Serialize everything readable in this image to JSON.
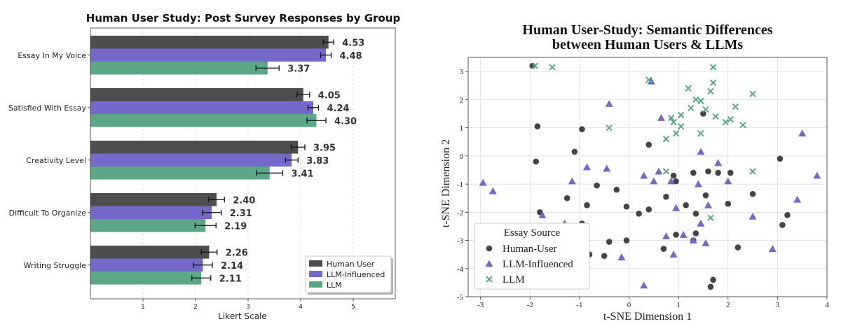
{
  "chart_data": [
    {
      "type": "bar",
      "orientation": "horizontal",
      "title": "Human User Study: Post Survey Responses by Group",
      "xlabel": "Likert Scale",
      "ylabel": "",
      "xlim": [
        0,
        5.8
      ],
      "xticks": [
        "1",
        "2",
        "3",
        "4",
        "5"
      ],
      "grid": true,
      "legend_position": "bottom-right",
      "categories": [
        "Essay In My Voice",
        "Satisfied With Essay",
        "Creativity Level",
        "Difficult To Organize",
        "Writing Struggle"
      ],
      "series": [
        {
          "name": "Human User",
          "color": "#4d4d4d",
          "values": [
            4.53,
            4.05,
            3.95,
            2.4,
            2.26
          ],
          "labels": [
            "4.53",
            "4.05",
            "3.95",
            "2.40",
            "2.26"
          ],
          "errors": [
            0.1,
            0.12,
            0.13,
            0.15,
            0.15
          ]
        },
        {
          "name": "LLM-Influenced",
          "color": "#7468c9",
          "values": [
            4.48,
            4.24,
            3.83,
            2.31,
            2.14
          ],
          "labels": [
            "4.48",
            "4.24",
            "3.83",
            "2.31",
            "2.14"
          ],
          "errors": [
            0.1,
            0.1,
            0.12,
            0.18,
            0.18
          ]
        },
        {
          "name": "LLM",
          "color": "#5aa886",
          "values": [
            3.37,
            4.3,
            3.41,
            2.19,
            2.11
          ],
          "labels": [
            "3.37",
            "4.30",
            "3.41",
            "2.19",
            "2.11"
          ],
          "errors": [
            0.22,
            0.18,
            0.25,
            0.2,
            0.18
          ]
        }
      ]
    },
    {
      "type": "scatter",
      "title": "Human User-Study: Semantic Differences\nbetween Human Users & LLMs",
      "xlabel": "t-SNE Dimension 1",
      "ylabel": "t-SNE Dimension 2",
      "xlim": [
        -3.25,
        4.0
      ],
      "ylim": [
        -5.0,
        3.5
      ],
      "xticks": [
        "-3",
        "-2",
        "-1",
        "0",
        "1",
        "2",
        "3",
        "4"
      ],
      "yticks": [
        "-5",
        "-4",
        "-3",
        "-2",
        "-1",
        "0",
        "1",
        "2",
        "3"
      ],
      "grid": true,
      "legend_title": "Essay Source",
      "legend_position": "bottom-left",
      "series": [
        {
          "name": "Human-User",
          "marker": "circle",
          "color": "#444444",
          "x": [
            -1.95,
            -1.85,
            -0.95,
            -1.88,
            -1.1,
            -1.8,
            -1.55,
            -0.65,
            -0.85,
            -1.25,
            -0.95,
            -0.4,
            -0.05,
            0.4,
            -0.25,
            0.9,
            1.5,
            0.95,
            1.3,
            1.6,
            1.8,
            2.05,
            0.75,
            1.15,
            1.55,
            2.0,
            2.5,
            3.05,
            3.2,
            3.1,
            0.2,
            0.95,
            1.35,
            1.35,
            0.4,
            -0.05,
            0.7,
            1.3,
            2.2,
            1.65,
            1.7,
            -0.5,
            -0.8
          ],
          "y": [
            3.2,
            1.05,
            0.95,
            -0.2,
            0.15,
            -2.0,
            -2.55,
            -1.05,
            -1.75,
            -1.5,
            -2.4,
            -3.05,
            -1.8,
            0.4,
            -1.2,
            -0.7,
            1.5,
            -0.9,
            -0.6,
            -0.55,
            -0.6,
            -0.6,
            -1.45,
            -1.75,
            -1.4,
            -1.7,
            -1.35,
            -0.1,
            -2.1,
            -2.45,
            -2.05,
            -2.8,
            -2.05,
            -2.75,
            -1.9,
            -3.0,
            -3.3,
            -3.0,
            -3.25,
            -4.65,
            -4.4,
            -3.55,
            -3.5
          ]
        },
        {
          "name": "LLM-Influenced",
          "marker": "triangle",
          "color": "#7468c9",
          "x": [
            -2.95,
            -2.75,
            -1.75,
            -1.3,
            -1.15,
            -0.85,
            -0.45,
            -0.4,
            0.45,
            0.65,
            0.6,
            0.3,
            0.5,
            0.85,
            1.1,
            1.45,
            1.45,
            1.6,
            1.8,
            1.55,
            1.3,
            1.4,
            2.0,
            2.5,
            2.9,
            3.4,
            3.5,
            3.8,
            0.9,
            0.95,
            0.3,
            -0.15,
            0.75
          ],
          "y": [
            -0.95,
            -1.25,
            -2.1,
            -2.4,
            -0.9,
            -0.4,
            -0.45,
            1.85,
            2.65,
            1.35,
            -0.55,
            -0.7,
            -0.9,
            -0.9,
            -2.8,
            0.15,
            -2.4,
            -1.75,
            -0.25,
            -3.1,
            -3.0,
            -1.0,
            -0.9,
            -2.15,
            -3.3,
            -1.55,
            0.8,
            -0.7,
            -3.5,
            -1.85,
            -4.6,
            -3.6,
            -2.85
          ]
        },
        {
          "name": "LLM",
          "marker": "x",
          "color": "#5aa886",
          "x": [
            -1.9,
            -1.55,
            0.4,
            -0.4,
            0.75,
            0.9,
            0.95,
            1.05,
            1.2,
            1.25,
            1.35,
            1.45,
            1.45,
            1.55,
            1.65,
            1.7,
            1.75,
            1.95,
            2.05,
            2.15,
            2.3,
            2.5,
            1.7,
            0.75,
            2.5,
            1.65,
            0.85,
            1.05
          ],
          "y": [
            3.2,
            3.15,
            2.7,
            1.0,
            0.6,
            1.2,
            0.8,
            1.45,
            2.4,
            1.7,
            2.0,
            1.95,
            0.8,
            1.65,
            2.3,
            2.6,
            1.4,
            1.2,
            1.3,
            1.75,
            1.1,
            2.2,
            3.15,
            -0.55,
            -0.55,
            -2.2,
            1.35,
            1.05
          ]
        }
      ]
    }
  ]
}
